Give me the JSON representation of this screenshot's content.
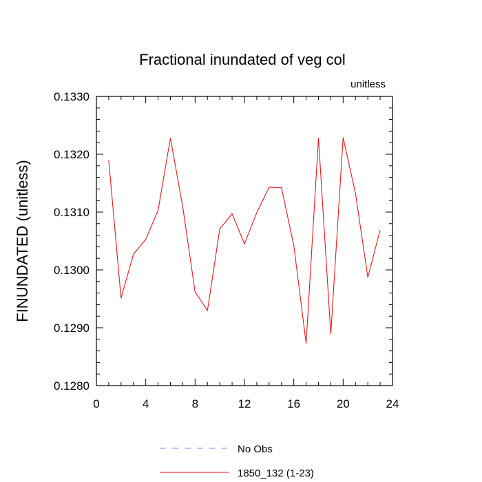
{
  "chart_data": {
    "type": "line",
    "title": "Fractional inundated of veg col",
    "units_label": "unitless",
    "xlabel": "",
    "ylabel": "FINUNDATED  (unitless)",
    "xlim": [
      0,
      24
    ],
    "ylim": [
      0.128,
      0.133
    ],
    "x_ticks": [
      0,
      4,
      8,
      12,
      16,
      20,
      24
    ],
    "x_tick_labels": [
      "0",
      "4",
      "8",
      "12",
      "16",
      "20",
      "24"
    ],
    "y_ticks": [
      0.128,
      0.129,
      0.13,
      0.131,
      0.132,
      0.133
    ],
    "y_tick_labels": [
      "0.1280",
      "0.1290",
      "0.1300",
      "0.1310",
      "0.1320",
      "0.1330"
    ],
    "series": [
      {
        "name": "1850_132 (1-23)",
        "color": "#e8141c",
        "x": [
          1,
          2,
          3,
          4,
          5,
          6,
          7,
          8,
          9,
          10,
          11,
          12,
          13,
          14,
          15,
          16,
          17,
          18,
          19,
          20,
          21,
          22,
          23
        ],
        "values": [
          0.1319,
          0.12951,
          0.13027,
          0.13053,
          0.13103,
          0.13228,
          0.13109,
          0.12962,
          0.1293,
          0.13071,
          0.13097,
          0.13045,
          0.13099,
          0.13143,
          0.13142,
          0.13042,
          0.12873,
          0.13228,
          0.12889,
          0.13229,
          0.13132,
          0.12987,
          0.13069
        ]
      }
    ],
    "legend": [
      {
        "label": "No Obs",
        "color": "#8080ff",
        "style": "dashed"
      },
      {
        "label": "1850_132 (1-23)",
        "color": "#e8141c",
        "style": "solid"
      }
    ],
    "legend_position": "bottom"
  }
}
